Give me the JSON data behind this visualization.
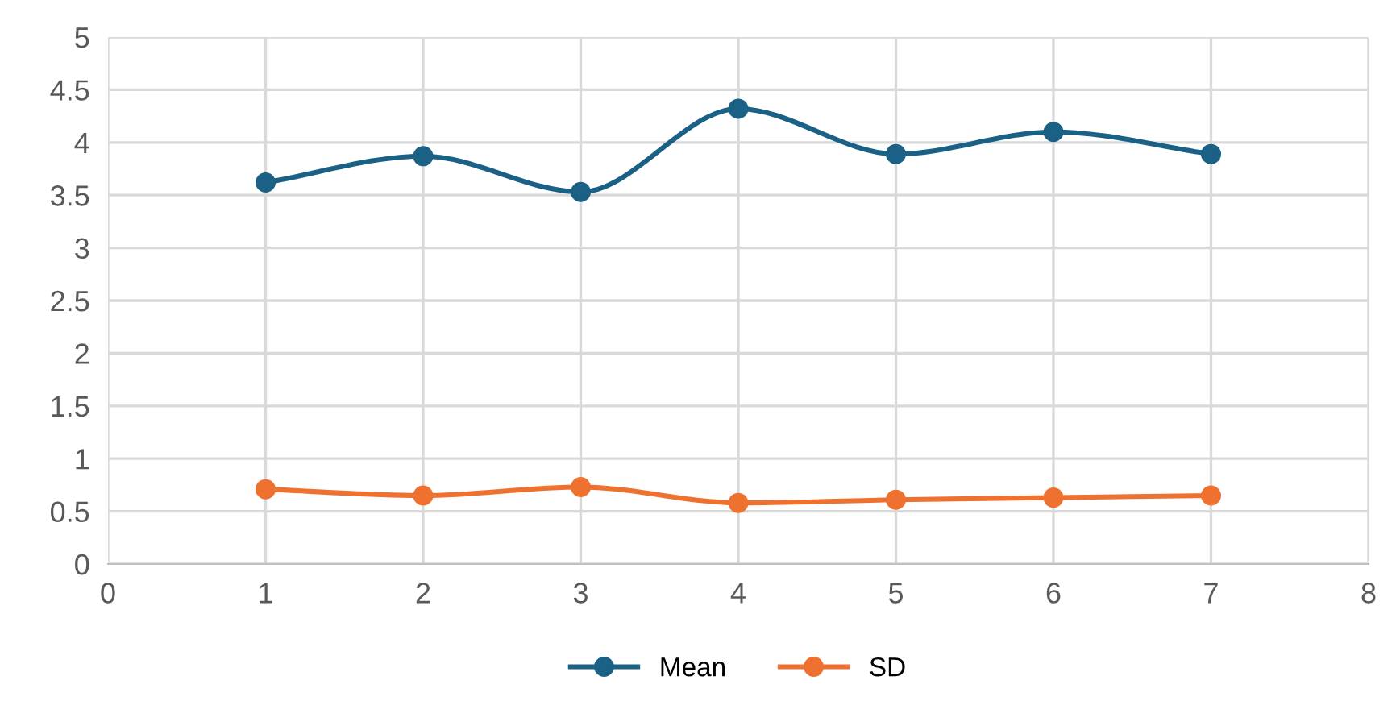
{
  "chart_data": {
    "type": "line",
    "x": [
      1,
      2,
      3,
      4,
      5,
      6,
      7
    ],
    "series": [
      {
        "name": "Mean",
        "color": "#1b6185",
        "values": [
          3.62,
          3.87,
          3.53,
          4.32,
          3.89,
          4.1,
          3.89
        ]
      },
      {
        "name": "SD",
        "color": "#ee7130",
        "values": [
          0.71,
          0.65,
          0.73,
          0.58,
          0.61,
          0.63,
          0.65
        ]
      }
    ],
    "xlim": [
      0,
      8
    ],
    "xticks": [
      0,
      1,
      2,
      3,
      4,
      5,
      6,
      7,
      8
    ],
    "ylim": [
      0,
      5
    ],
    "yticks": [
      0,
      0.5,
      1,
      1.5,
      2,
      2.5,
      3,
      3.5,
      4,
      4.5,
      5
    ],
    "grid": true,
    "legend": "bottom",
    "marker": "circle",
    "line_style": "solid"
  }
}
